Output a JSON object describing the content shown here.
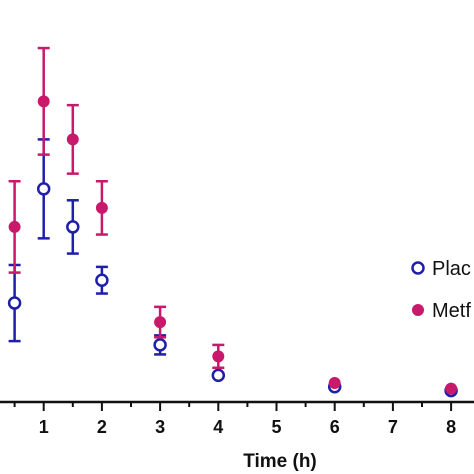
{
  "chart_data": {
    "type": "scatter",
    "xlabel": "Time (h)",
    "x_ticks": [
      1,
      2,
      3,
      4,
      5,
      6,
      7,
      8
    ],
    "xlim": [
      0.0,
      8.2
    ],
    "ylim": [
      -0.3,
      10.0
    ],
    "grid": false,
    "legend_placement": "right",
    "series": [
      {
        "name": "Plac",
        "marker": "open-circle",
        "color": "#1f1fa8",
        "x": [
          0.5,
          1,
          1.5,
          2,
          3,
          4,
          6,
          8
        ],
        "y": [
          2.3,
          5.3,
          4.3,
          2.9,
          1.2,
          0.4,
          0.1,
          0.0
        ],
        "err": [
          1.0,
          1.3,
          0.7,
          0.35,
          0.25,
          0.1,
          0.05,
          0.05
        ]
      },
      {
        "name": "Metf",
        "marker": "filled-circle",
        "color": "#c8196b",
        "x": [
          0.5,
          1,
          1.5,
          2,
          3,
          4,
          6,
          8
        ],
        "y": [
          4.3,
          7.6,
          6.6,
          4.8,
          1.8,
          0.9,
          0.2,
          0.05
        ],
        "err": [
          1.2,
          1.4,
          0.9,
          0.7,
          0.4,
          0.3,
          0.05,
          0.05
        ]
      }
    ]
  }
}
